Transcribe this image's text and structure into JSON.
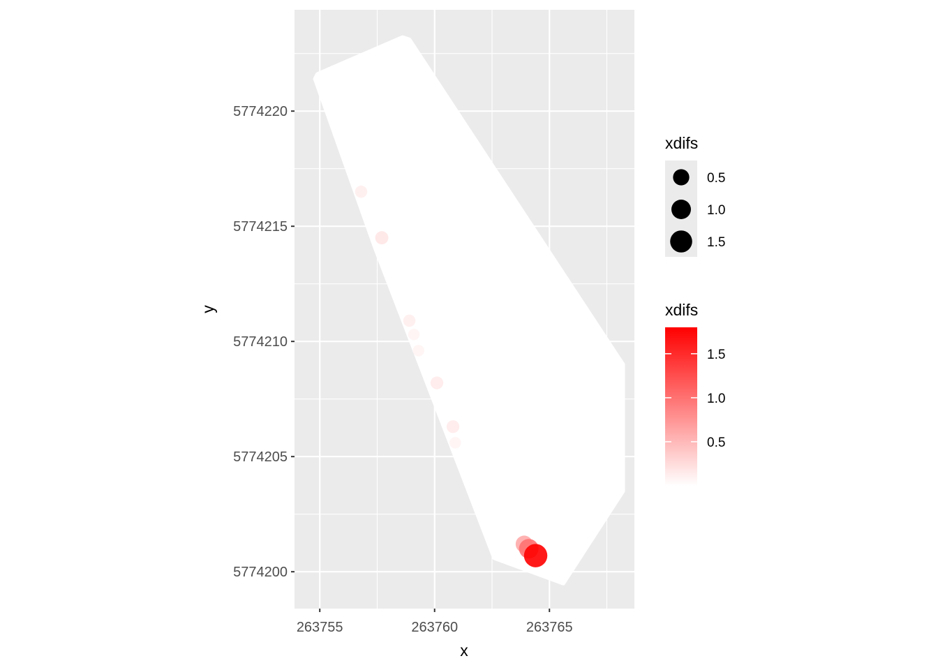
{
  "chart_data": {
    "type": "scatter",
    "title": "",
    "xlabel": "x",
    "ylabel": "y",
    "xlim": [
      263753.9,
      263768.7
    ],
    "ylim": [
      5774198.4,
      5774224.4
    ],
    "x_ticks": [
      263755,
      263760,
      263765
    ],
    "y_ticks": [
      5774200,
      5774205,
      5774210,
      5774215,
      5774220
    ],
    "x_tick_labels": [
      "263755",
      "263760",
      "263765"
    ],
    "y_tick_labels": [
      "5774200",
      "5774205",
      "5774210",
      "5774215",
      "5774220"
    ],
    "grid": true,
    "panel_background": "#ebebeb",
    "grid_color": "#ffffff",
    "field_color": "#ffffff",
    "field_outline": [
      [
        263754.8,
        5774221.4
      ],
      [
        263754.9,
        5774221.6
      ],
      [
        263758.6,
        5774223.2
      ],
      [
        263758.9,
        5774223.1
      ],
      [
        263768.2,
        5774209.0
      ],
      [
        263768.2,
        5774203.5
      ],
      [
        263765.6,
        5774199.5
      ],
      [
        263762.6,
        5774200.6
      ],
      [
        263757.4,
        5774214.1
      ]
    ],
    "series": [
      {
        "points": [
          {
            "x": 263756.8,
            "y": 5774216.5,
            "xdifs": 0.12
          },
          {
            "x": 263757.7,
            "y": 5774214.5,
            "xdifs": 0.18
          },
          {
            "x": 263758.9,
            "y": 5774210.9,
            "xdifs": 0.12
          },
          {
            "x": 263759.1,
            "y": 5774210.3,
            "xdifs": 0.08
          },
          {
            "x": 263759.3,
            "y": 5774209.6,
            "xdifs": 0.08
          },
          {
            "x": 263760.1,
            "y": 5774208.2,
            "xdifs": 0.15
          },
          {
            "x": 263760.8,
            "y": 5774206.3,
            "xdifs": 0.15
          },
          {
            "x": 263760.9,
            "y": 5774205.6,
            "xdifs": 0.08
          },
          {
            "x": 263763.9,
            "y": 5774201.2,
            "xdifs": 0.6
          },
          {
            "x": 263764.1,
            "y": 5774201.0,
            "xdifs": 1.0
          },
          {
            "x": 263764.4,
            "y": 5774200.7,
            "xdifs": 1.8
          }
        ]
      }
    ],
    "legends": {
      "size": {
        "title": "xdifs",
        "breaks": [
          0.5,
          1.0,
          1.5
        ],
        "labels": [
          "0.5",
          "1.0",
          "1.5"
        ],
        "key_color": "#000000"
      },
      "color": {
        "title": "xdifs",
        "breaks": [
          0.5,
          1.0,
          1.5
        ],
        "labels": [
          "0.5",
          "1.0",
          "1.5"
        ],
        "range": [
          0.0,
          1.8
        ],
        "low_color": "#ffffff",
        "high_color": "#ff0000"
      }
    }
  }
}
